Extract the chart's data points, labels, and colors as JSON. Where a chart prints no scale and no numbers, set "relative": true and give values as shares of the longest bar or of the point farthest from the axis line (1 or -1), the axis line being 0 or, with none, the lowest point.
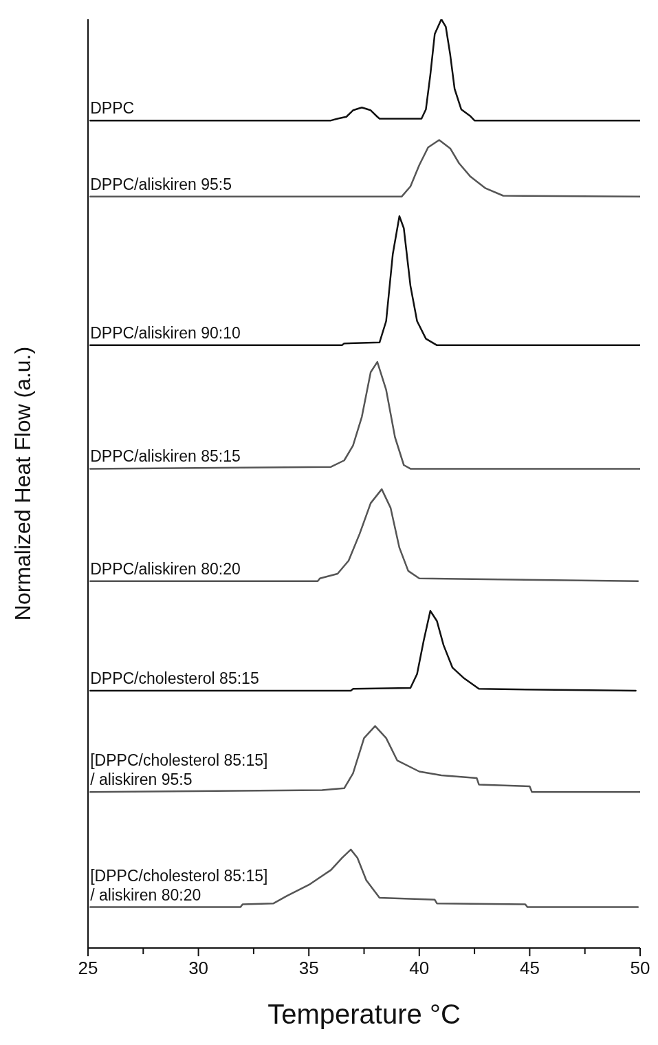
{
  "chart_data": {
    "type": "line",
    "relative": true,
    "xlabel": "Temperature °C",
    "ylabel": "Normalized Heat Flow (a.u.)",
    "xlim": [
      25,
      50
    ],
    "xticks": [
      25,
      {
        "value": 27.5,
        "label": null
      },
      30,
      {
        "value": 32.5,
        "label": null
      },
      35,
      {
        "value": 37.5,
        "label": null
      },
      40,
      {
        "value": 42.5,
        "label": null
      },
      45,
      {
        "value": 47.5,
        "label": null
      },
      50
    ],
    "grid": false,
    "legend": false,
    "marker": "none",
    "line_style": "solid",
    "series": [
      {
        "name": "DPPC",
        "color": "#111111",
        "x": [
          25.1,
          36.0,
          36.3,
          36.7,
          37.0,
          37.4,
          37.8,
          38.1,
          38.2,
          40.1,
          40.3,
          40.5,
          40.7,
          41.0,
          41.2,
          41.4,
          41.6,
          41.9,
          42.3,
          42.5,
          50.0
        ],
        "values": [
          0.891,
          0.891,
          0.893,
          0.895,
          0.902,
          0.905,
          0.902,
          0.895,
          0.893,
          0.893,
          0.903,
          0.94,
          0.984,
          1.0,
          0.992,
          0.962,
          0.925,
          0.903,
          0.896,
          0.891,
          0.891
        ]
      },
      {
        "name": "DPPC/aliskiren 95:5",
        "color": "#555555",
        "x": [
          25.1,
          39.2,
          39.6,
          40.0,
          40.4,
          40.9,
          41.4,
          41.8,
          42.3,
          43.0,
          43.8,
          50.0
        ],
        "values": [
          0.809,
          0.809,
          0.82,
          0.843,
          0.862,
          0.87,
          0.861,
          0.845,
          0.831,
          0.818,
          0.81,
          0.809
        ]
      },
      {
        "name": "DPPC/aliskiren 90:10",
        "color": "#111111",
        "x": [
          25.1,
          36.5,
          36.6,
          38.2,
          38.5,
          38.8,
          39.1,
          39.3,
          39.6,
          39.9,
          40.3,
          40.8,
          50.0
        ],
        "values": [
          0.649,
          0.649,
          0.651,
          0.652,
          0.675,
          0.747,
          0.788,
          0.775,
          0.713,
          0.675,
          0.656,
          0.649,
          0.649
        ]
      },
      {
        "name": "DPPC/aliskiren 85:15",
        "color": "#555555",
        "x": [
          25.1,
          36.0,
          36.6,
          37.0,
          37.4,
          37.8,
          38.1,
          38.5,
          38.9,
          39.3,
          39.6,
          50.0
        ],
        "values": [
          0.516,
          0.518,
          0.525,
          0.541,
          0.572,
          0.62,
          0.631,
          0.601,
          0.55,
          0.52,
          0.516,
          0.516
        ]
      },
      {
        "name": "DPPC/aliskiren 80:20",
        "color": "#555555",
        "x": [
          25.1,
          35.4,
          35.5,
          36.3,
          36.8,
          37.3,
          37.8,
          38.3,
          38.7,
          39.1,
          39.5,
          40.0,
          49.9
        ],
        "values": [
          0.395,
          0.395,
          0.398,
          0.403,
          0.417,
          0.446,
          0.479,
          0.494,
          0.474,
          0.431,
          0.406,
          0.398,
          0.395
        ]
      },
      {
        "name": "DPPC/cholesterol 85:15",
        "color": "#111111",
        "x": [
          25.1,
          36.9,
          37.0,
          39.6,
          39.9,
          40.2,
          40.5,
          40.8,
          41.1,
          41.5,
          42.0,
          42.7,
          49.8
        ],
        "values": [
          0.277,
          0.277,
          0.279,
          0.28,
          0.295,
          0.331,
          0.363,
          0.352,
          0.326,
          0.302,
          0.291,
          0.279,
          0.277
        ]
      },
      {
        "name": "[DPPC/cholesterol 85:15]\n/ aliskiren 95:5",
        "color": "#555555",
        "x": [
          25.1,
          35.6,
          36.6,
          37.0,
          37.5,
          38.0,
          38.5,
          39.0,
          40.0,
          41.0,
          42.6,
          42.7,
          45.0,
          45.1,
          50.0
        ],
        "values": [
          0.168,
          0.17,
          0.172,
          0.188,
          0.226,
          0.239,
          0.226,
          0.202,
          0.19,
          0.186,
          0.183,
          0.176,
          0.174,
          0.168,
          0.168
        ]
      },
      {
        "name": "[DPPC/cholesterol 85:15]\n/ aliskiren 80:20",
        "color": "#555555",
        "x": [
          25.1,
          31.9,
          32.0,
          33.4,
          34.0,
          35.0,
          36.0,
          36.5,
          36.9,
          37.2,
          37.6,
          38.2,
          40.7,
          40.8,
          44.8,
          44.9,
          49.9
        ],
        "values": [
          0.044,
          0.044,
          0.047,
          0.048,
          0.056,
          0.068,
          0.084,
          0.097,
          0.106,
          0.097,
          0.073,
          0.054,
          0.052,
          0.048,
          0.047,
          0.044,
          0.044
        ]
      }
    ]
  }
}
